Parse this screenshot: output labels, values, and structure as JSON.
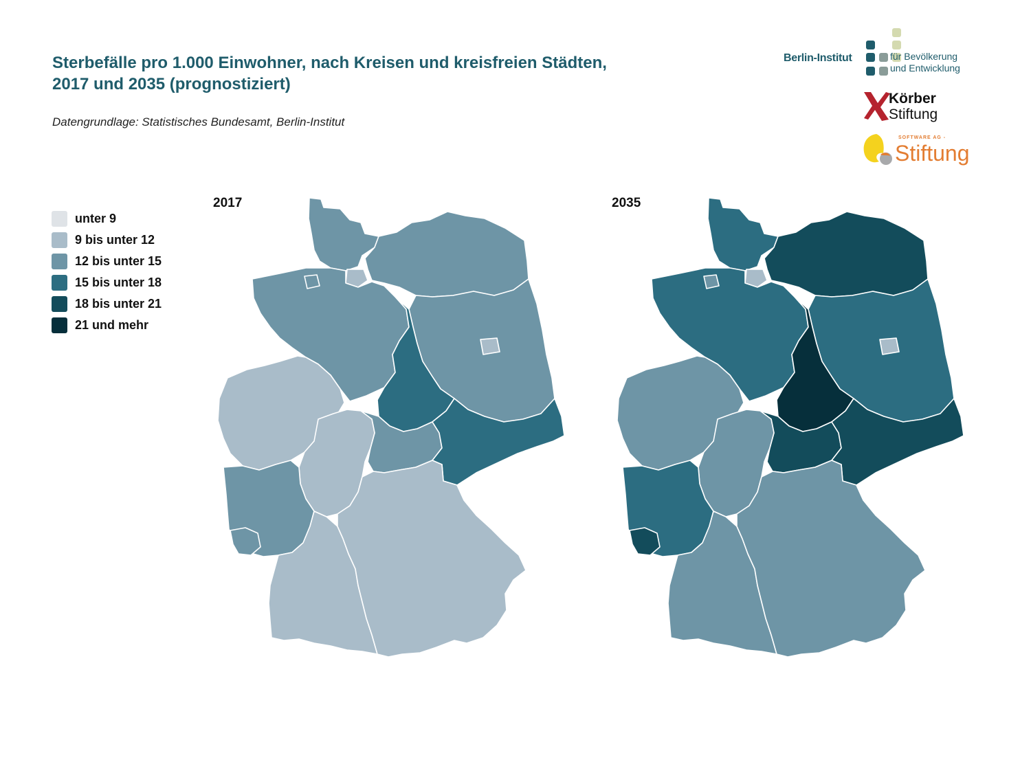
{
  "title_line1": "Sterbefälle pro 1.000 Einwohner, nach Kreisen und kreisfreien Städten,",
  "title_line2": "2017 und 2035 (prognostiziert)",
  "source": "Datengrundlage: Statistisches Bundesamt, Berlin-Institut",
  "legend": [
    {
      "label": "unter 9",
      "color": "#dfe3e7"
    },
    {
      "label": "9 bis unter 12",
      "color": "#a9bcc9"
    },
    {
      "label": "12 bis unter 15",
      "color": "#6e95a6"
    },
    {
      "label": "15 bis unter 18",
      "color": "#2c6d81"
    },
    {
      "label": "18 bis unter 21",
      "color": "#134c5b"
    },
    {
      "label": "21 und mehr",
      "color": "#062f3b"
    }
  ],
  "maps": [
    {
      "label": "2017",
      "regions": [
        {
          "name": "Schleswig-Holstein",
          "cls": 2
        },
        {
          "name": "Hamburg",
          "cls": 1
        },
        {
          "name": "Niedersachsen",
          "cls": 2
        },
        {
          "name": "Bremen",
          "cls": 2
        },
        {
          "name": "Mecklenburg-Vorpommern",
          "cls": 2
        },
        {
          "name": "Berlin",
          "cls": 1
        },
        {
          "name": "Brandenburg",
          "cls": 2
        },
        {
          "name": "Sachsen-Anhalt",
          "cls": 3
        },
        {
          "name": "Thüringen",
          "cls": 2
        },
        {
          "name": "Sachsen",
          "cls": 3
        },
        {
          "name": "Nordrhein-Westfalen",
          "cls": 1
        },
        {
          "name": "Hessen",
          "cls": 1
        },
        {
          "name": "Rheinland-Pfalz",
          "cls": 2
        },
        {
          "name": "Saarland",
          "cls": 2
        },
        {
          "name": "Baden-Württemberg",
          "cls": 1
        },
        {
          "name": "Bayern",
          "cls": 1
        }
      ]
    },
    {
      "label": "2035",
      "regions": [
        {
          "name": "Schleswig-Holstein",
          "cls": 3
        },
        {
          "name": "Hamburg",
          "cls": 1
        },
        {
          "name": "Niedersachsen",
          "cls": 3
        },
        {
          "name": "Bremen",
          "cls": 2
        },
        {
          "name": "Mecklenburg-Vorpommern",
          "cls": 4
        },
        {
          "name": "Berlin",
          "cls": 1
        },
        {
          "name": "Brandenburg",
          "cls": 3
        },
        {
          "name": "Sachsen-Anhalt",
          "cls": 5
        },
        {
          "name": "Thüringen",
          "cls": 4
        },
        {
          "name": "Sachsen",
          "cls": 4
        },
        {
          "name": "Nordrhein-Westfalen",
          "cls": 2
        },
        {
          "name": "Hessen",
          "cls": 2
        },
        {
          "name": "Rheinland-Pfalz",
          "cls": 3
        },
        {
          "name": "Saarland",
          "cls": 4
        },
        {
          "name": "Baden-Württemberg",
          "cls": 2
        },
        {
          "name": "Bayern",
          "cls": 2
        }
      ]
    }
  ],
  "logos": {
    "berlin_institut": "Berlin-Institut",
    "berlin_sub1": "für Bevölkerung",
    "berlin_sub2": "und Entwicklung",
    "koerber1": "Körber",
    "koerber2": "Stiftung",
    "sag_small": "SOFTWARE AG -",
    "sag_big": "Stiftung"
  }
}
